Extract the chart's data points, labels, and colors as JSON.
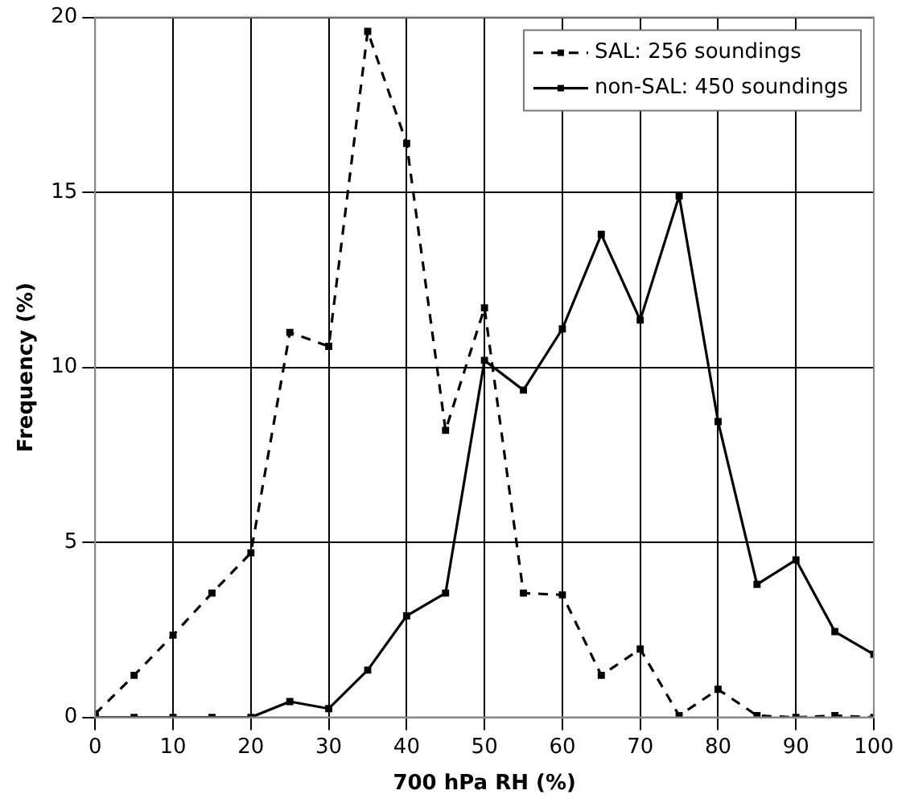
{
  "chart_data": {
    "type": "line",
    "xlabel": "700 hPa RH (%)",
    "ylabel": "Frequency (%)",
    "x": [
      0,
      5,
      10,
      15,
      20,
      25,
      30,
      35,
      40,
      45,
      50,
      55,
      60,
      65,
      70,
      75,
      80,
      85,
      90,
      95,
      100
    ],
    "series": [
      {
        "name": "SAL: 256 soundings",
        "color": "#000000",
        "line_style": "dashed",
        "values": [
          0.1,
          1.2,
          2.35,
          3.55,
          4.7,
          11.0,
          10.6,
          19.6,
          16.4,
          8.2,
          11.7,
          3.55,
          3.5,
          1.2,
          1.95,
          0.05,
          0.8,
          0.05,
          0,
          0.05,
          0
        ]
      },
      {
        "name": "non-SAL: 450 soundings",
        "color": "#000000",
        "line_style": "solid",
        "values": [
          0,
          0,
          0,
          0,
          0,
          0.45,
          0.25,
          1.35,
          2.9,
          3.55,
          10.2,
          9.35,
          11.1,
          13.8,
          11.35,
          14.9,
          8.45,
          3.8,
          4.5,
          2.45,
          1.8
        ]
      }
    ],
    "xlim": [
      0,
      100
    ],
    "xticks": [
      0,
      10,
      20,
      30,
      40,
      50,
      60,
      70,
      80,
      90,
      100
    ],
    "ylim": [
      0,
      20
    ],
    "yticks": [
      0,
      5,
      10,
      15,
      20
    ],
    "grid": true,
    "legend": "top right",
    "marker": "square"
  }
}
